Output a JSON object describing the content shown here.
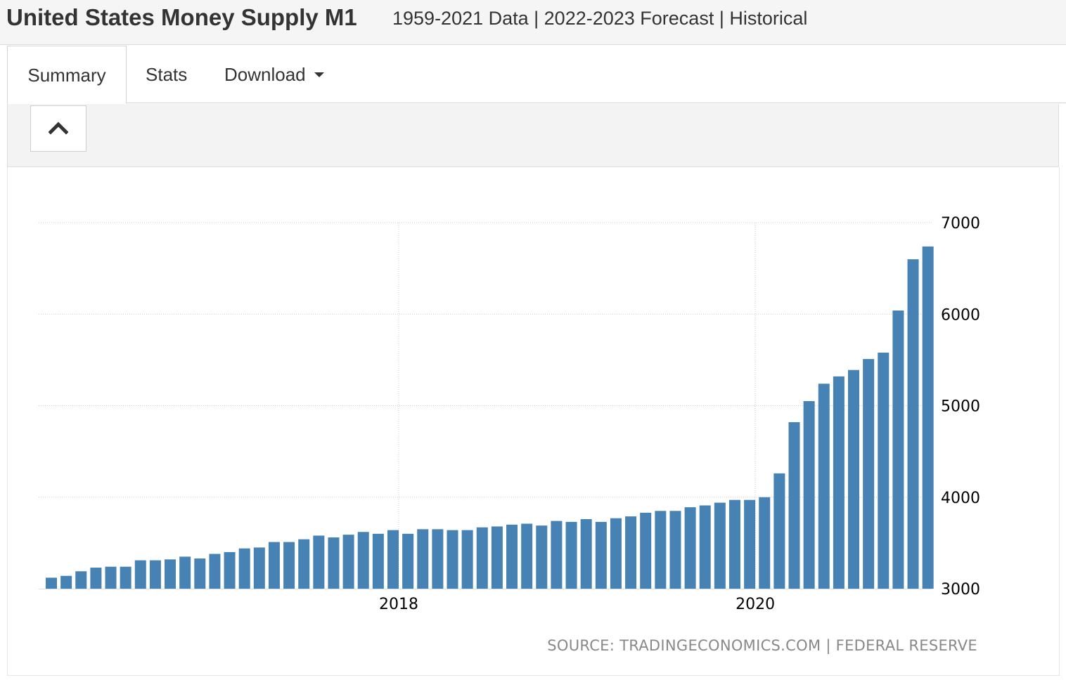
{
  "header": {
    "title": "United States Money Supply M1",
    "subtitle": "1959-2021 Data | 2022-2023 Forecast | Historical"
  },
  "tabs": [
    {
      "label": "Summary",
      "active": true
    },
    {
      "label": "Stats",
      "active": false
    },
    {
      "label": "Download",
      "active": false
    }
  ],
  "collapse_button": {
    "icon": "chevron-up-icon"
  },
  "chart_data": {
    "type": "bar",
    "title": "",
    "xlabel": "",
    "ylabel": "",
    "ylim": [
      3000,
      7000
    ],
    "yticks": [
      3000,
      4000,
      5000,
      6000,
      7000
    ],
    "y_axis_position": "right",
    "xticks": [
      {
        "label": "2018",
        "at_index": 23.5
      },
      {
        "label": "2020",
        "at_index": 47.5
      }
    ],
    "grid": true,
    "bar_color": "#4682b4",
    "legend": "none",
    "values": [
      3120,
      3140,
      3190,
      3230,
      3240,
      3240,
      3310,
      3310,
      3320,
      3350,
      3330,
      3380,
      3400,
      3440,
      3450,
      3510,
      3510,
      3540,
      3580,
      3560,
      3590,
      3620,
      3600,
      3640,
      3600,
      3650,
      3650,
      3640,
      3640,
      3670,
      3680,
      3700,
      3710,
      3690,
      3740,
      3730,
      3760,
      3730,
      3770,
      3790,
      3830,
      3850,
      3850,
      3890,
      3910,
      3940,
      3970,
      3970,
      4000,
      4260,
      4820,
      5050,
      5240,
      5320,
      5390,
      5510,
      5580,
      6040,
      6600,
      6740
    ]
  },
  "source": "SOURCE: TRADINGECONOMICS.COM | FEDERAL RESERVE"
}
